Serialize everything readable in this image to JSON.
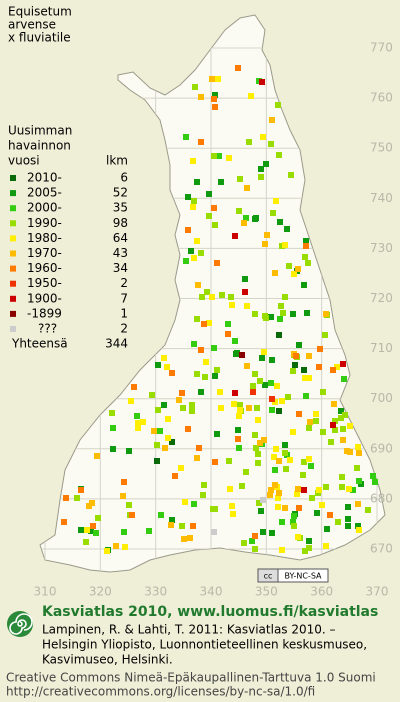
{
  "title": [
    "Equisetum",
    "arvense",
    "x fluviatile"
  ],
  "legend": {
    "heading": [
      "Uusimman",
      "havainnon"
    ],
    "heading_year": "vuosi",
    "heading_count": "lkm",
    "items": [
      {
        "label": "2010-",
        "count": 6,
        "color": "#0a6a0a"
      },
      {
        "label": "2005-",
        "count": 52,
        "color": "#109a10"
      },
      {
        "label": "2000-",
        "count": 35,
        "color": "#33cc11"
      },
      {
        "label": "1990-",
        "count": 98,
        "color": "#99dd00"
      },
      {
        "label": "1980-",
        "count": 64,
        "color": "#ffee00"
      },
      {
        "label": "1970-",
        "count": 43,
        "color": "#ffbb00"
      },
      {
        "label": "1960-",
        "count": 34,
        "color": "#ff7a00"
      },
      {
        "label": "1950-",
        "count": 2,
        "color": "#ee3300"
      },
      {
        "label": "1900-",
        "count": 7,
        "color": "#cc0000"
      },
      {
        "label": "-1899",
        "count": 1,
        "color": "#880000"
      },
      {
        "label": "???",
        "count": 2,
        "color": "#cccccc"
      }
    ],
    "total_label": "Yhteensä",
    "total": 344
  },
  "grid": {
    "y_labels": [
      770,
      760,
      750,
      740,
      730,
      720,
      710,
      700,
      690,
      680,
      670
    ],
    "x_labels": [
      310,
      320,
      330,
      340,
      350,
      360,
      370
    ]
  },
  "license_badge": [
    "cc",
    "BY-NC-SA"
  ],
  "footer": {
    "heading": "Kasviatlas 2010, www.luomus.fi/kasviatlas",
    "citation": [
      "Lampinen, R. & Lahti, T. 2011: Kasviatlas 2010. –",
      "Helsingin Yliopisto, Luonnontieteellinen keskusmuseo,",
      "Kasvimuseo, Helsinki."
    ],
    "license": [
      "Creative Commons Nimeä-Epäkaupallinen-Tarttuva 1.0 Suomi",
      "http://creativecommons.org/licenses/by-nc-sa/1.0/fi"
    ]
  }
}
